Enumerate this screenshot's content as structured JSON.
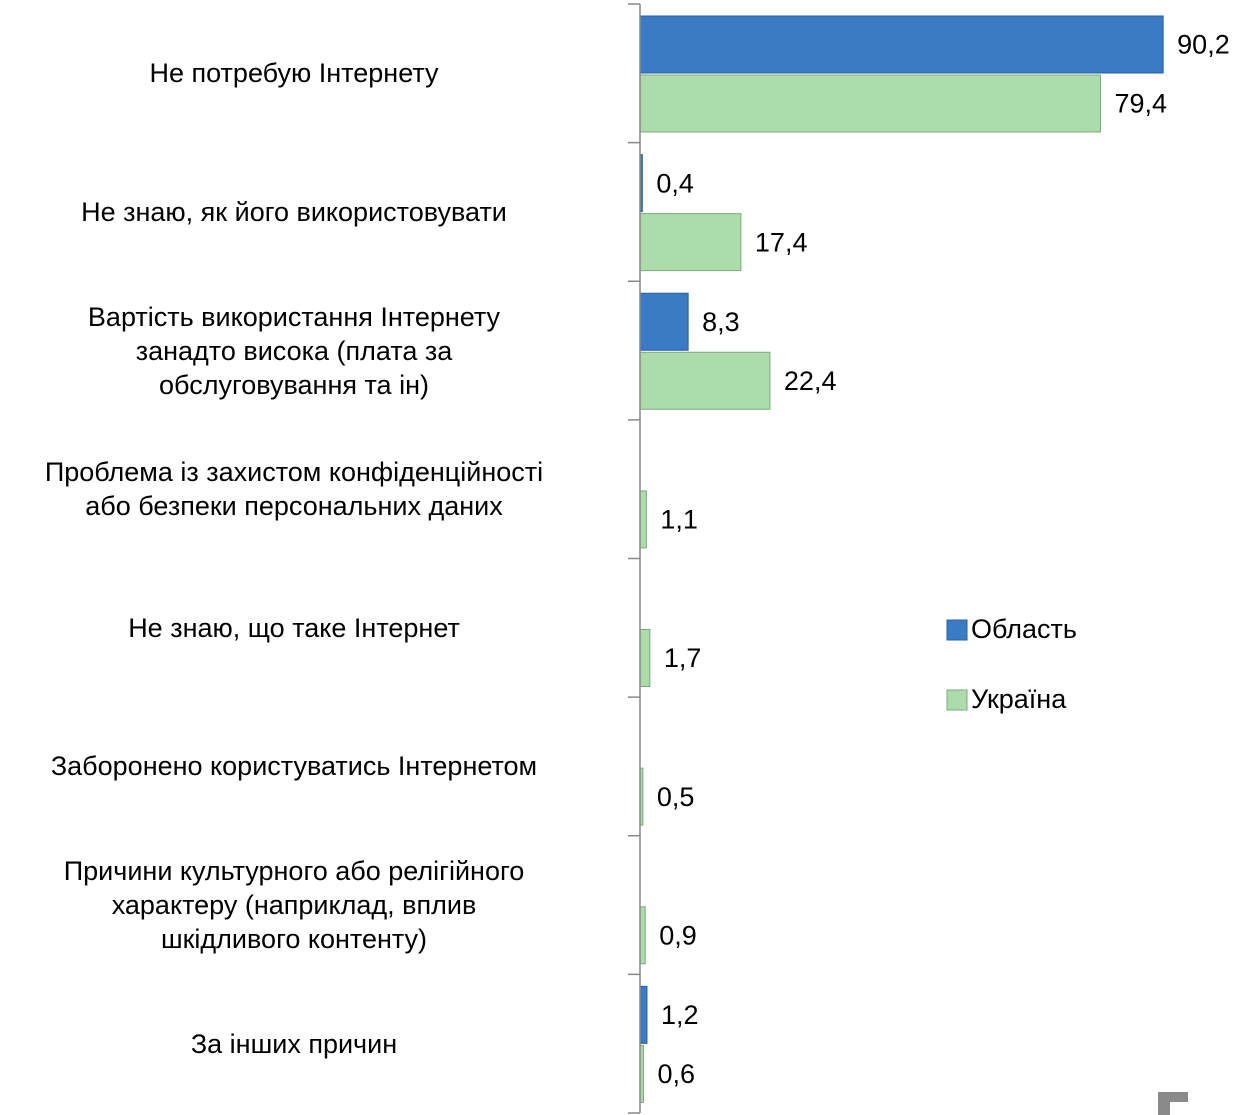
{
  "chart_data": {
    "type": "barh",
    "categories": [
      "Не потребую Інтернету",
      "Не знаю, як його використовувати",
      "Вартість використання Інтернету\nзанадто висока (плата за\nобслуговування та ін)",
      "Проблема із захистом конфіденційності\nабо безпеки персональних даних",
      "Не знаю, що таке Інтернет",
      "Заборонено користуватись Інтернетом",
      "Причини культурного або релігійного\nхарактеру (наприклад, вплив\nшкідливого контенту)",
      "За інших причин"
    ],
    "series": [
      {
        "name": "Область",
        "color": "#3a7cc4",
        "values": [
          90.2,
          0.4,
          8.3,
          null,
          null,
          null,
          null,
          1.2
        ],
        "value_labels": [
          "90,2",
          "0,4",
          "8,3",
          null,
          null,
          null,
          null,
          "1,2"
        ]
      },
      {
        "name": "Україна",
        "color": "#acdcaa",
        "values": [
          79.4,
          17.4,
          22.4,
          1.1,
          1.7,
          0.5,
          0.9,
          0.6
        ],
        "value_labels": [
          "79,4",
          "17,4",
          "22,4",
          "1,1",
          "1,7",
          "0,5",
          "0,9",
          "0,6"
        ]
      }
    ],
    "xlim": [
      0,
      100
    ],
    "legend": "right"
  }
}
